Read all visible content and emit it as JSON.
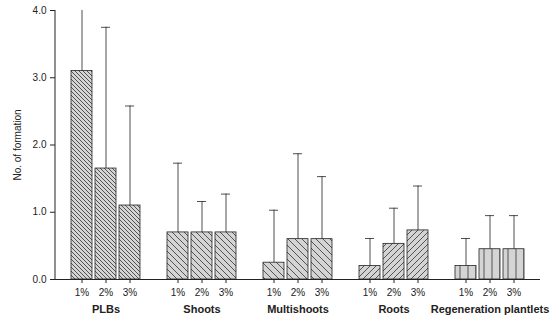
{
  "chart_data": {
    "type": "bar",
    "y_label": "No. of formation",
    "categories": [
      "1%",
      "2%",
      "3%"
    ],
    "series": [
      {
        "name": "PLBs",
        "values": [
          3.1,
          1.65,
          1.1
        ],
        "errors": [
          1.1,
          2.1,
          1.48
        ]
      },
      {
        "name": "Shoots",
        "values": [
          0.7,
          0.7,
          0.7
        ],
        "errors": [
          1.03,
          0.46,
          0.57
        ]
      },
      {
        "name": "Multishoots",
        "values": [
          0.25,
          0.6,
          0.6
        ],
        "errors": [
          0.78,
          1.27,
          0.93
        ]
      },
      {
        "name": "Roots",
        "values": [
          0.2,
          0.53,
          0.73
        ],
        "errors": [
          0.41,
          0.53,
          0.66
        ]
      },
      {
        "name": "Regeneration plantlets",
        "values": [
          0.2,
          0.45,
          0.45
        ],
        "errors": [
          0.41,
          0.5,
          0.5
        ]
      }
    ],
    "color": "#d4d4d4",
    "ylim": [
      0,
      4
    ],
    "yticks": [
      0,
      1,
      2,
      3,
      4
    ]
  }
}
